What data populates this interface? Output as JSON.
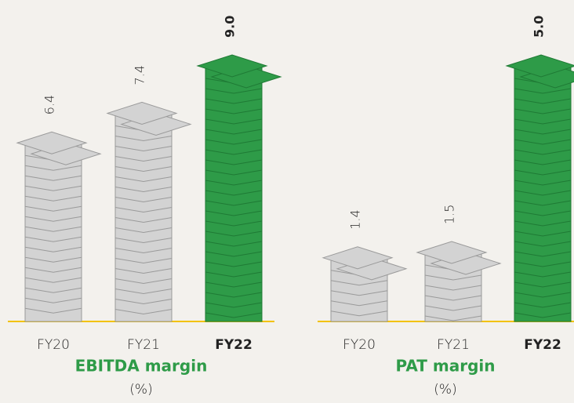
{
  "chart_data": [
    {
      "type": "bar",
      "title": "EBITDA margin",
      "subtitle": "(%)",
      "categories": [
        "FY20",
        "FY21",
        "FY22"
      ],
      "values": [
        6.4,
        7.4,
        9.0
      ],
      "value_labels": [
        "6.4",
        "7.4",
        "9.0"
      ],
      "colors": [
        "#d3d3d3",
        "#d3d3d3",
        "#2e9b48"
      ]
    },
    {
      "type": "bar",
      "title": "PAT margin",
      "subtitle": "(%)",
      "categories": [
        "FY20",
        "FY21",
        "FY22"
      ],
      "values": [
        1.4,
        1.5,
        5.0
      ],
      "value_labels": [
        "1.4",
        "1.5",
        "5.0"
      ],
      "colors": [
        "#d3d3d3",
        "#d3d3d3",
        "#2e9b48"
      ]
    }
  ]
}
